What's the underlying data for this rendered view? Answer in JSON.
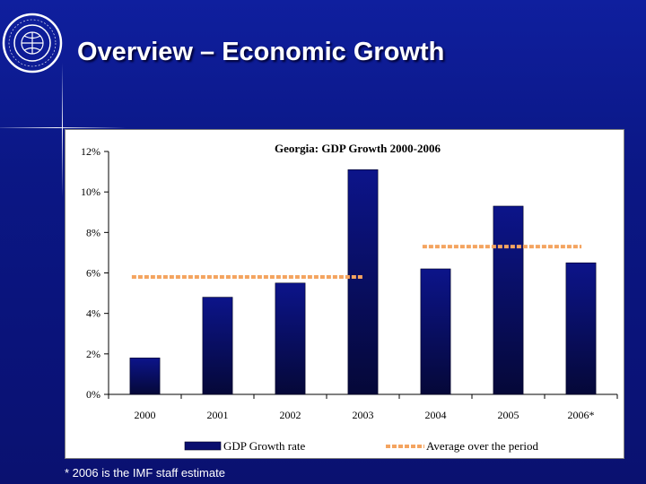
{
  "slide": {
    "title": "Overview – Economic Growth",
    "footnote": "* 2006 is the IMF staff estimate",
    "seal_text": "INTERNATIONAL MONETARY FUND"
  },
  "colors": {
    "background": "#0b1785",
    "bar": "#0a0f6e",
    "average_line": "#f4a460"
  },
  "chart_data": {
    "type": "bar",
    "title": "Georgia: GDP Growth 2000-2006",
    "categories": [
      "2000",
      "2001",
      "2002",
      "2003",
      "2004",
      "2005",
      "2006*"
    ],
    "series": [
      {
        "name": "GDP Growth rate",
        "values": [
          1.8,
          4.8,
          5.5,
          11.1,
          6.2,
          9.3,
          6.5
        ]
      }
    ],
    "averages": [
      {
        "name": "Average over the period",
        "value": 5.8,
        "from": "2000",
        "to": "2003"
      },
      {
        "name": "Average over the period",
        "value": 7.3,
        "from": "2004",
        "to": "2006*"
      }
    ],
    "ylim": [
      0,
      12
    ],
    "yticks": [
      0,
      2,
      4,
      6,
      8,
      10,
      12
    ],
    "ytick_labels": [
      "0%",
      "2%",
      "4%",
      "6%",
      "8%",
      "10%",
      "12%"
    ],
    "xlabel": "",
    "ylabel": "",
    "legend": [
      "GDP Growth rate",
      "Average over the period"
    ],
    "legend_position": "bottom",
    "grid": false
  }
}
